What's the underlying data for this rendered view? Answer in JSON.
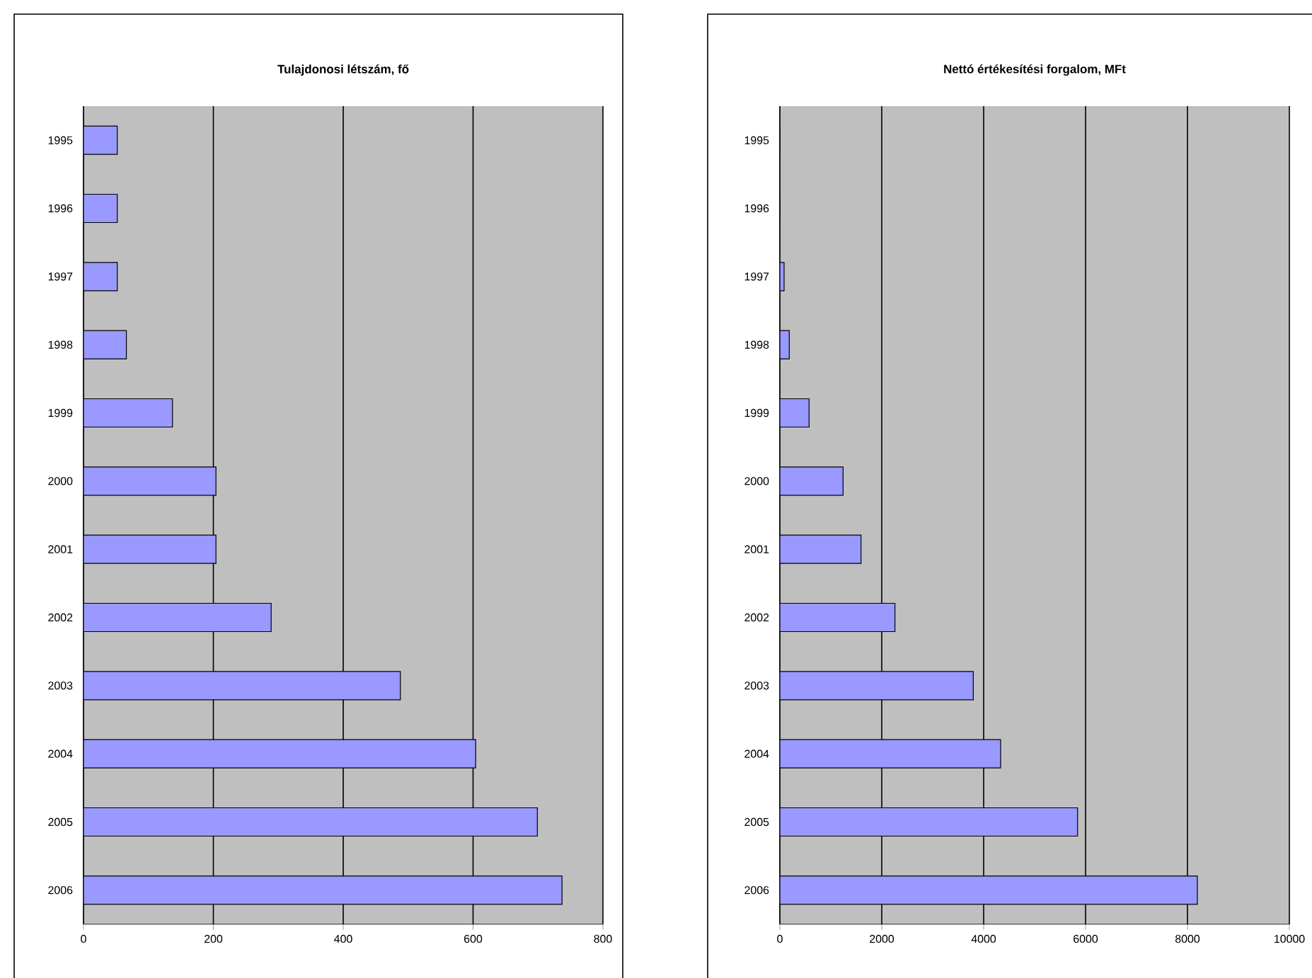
{
  "chart_data": [
    {
      "type": "bar",
      "orientation": "horizontal",
      "title": "Tulajdonosi létszám, fő",
      "categories": [
        "1995",
        "1996",
        "1997",
        "1998",
        "1999",
        "2000",
        "2001",
        "2002",
        "2003",
        "2004",
        "2005",
        "2006"
      ],
      "values": [
        52,
        52,
        52,
        66,
        137,
        204,
        204,
        289,
        488,
        604,
        699,
        737
      ],
      "color": "#9999ff",
      "xlim": [
        0,
        800
      ],
      "xticks": [
        0,
        200,
        400,
        600,
        800
      ],
      "grid": "x"
    },
    {
      "type": "bar",
      "orientation": "horizontal",
      "title": "Nettó értékesítési forgalom, MFt",
      "categories": [
        "1995",
        "1996",
        "1997",
        "1998",
        "1999",
        "2000",
        "2001",
        "2002",
        "2003",
        "2004",
        "2005",
        "2006"
      ],
      "values": [
        0,
        0,
        83,
        185,
        574,
        1241,
        1593,
        2259,
        3796,
        4333,
        5843,
        8194
      ],
      "color": "#9999ff",
      "xlim": [
        0,
        10000
      ],
      "xticks": [
        0,
        2000,
        4000,
        6000,
        8000,
        10000
      ],
      "grid": "x"
    }
  ]
}
